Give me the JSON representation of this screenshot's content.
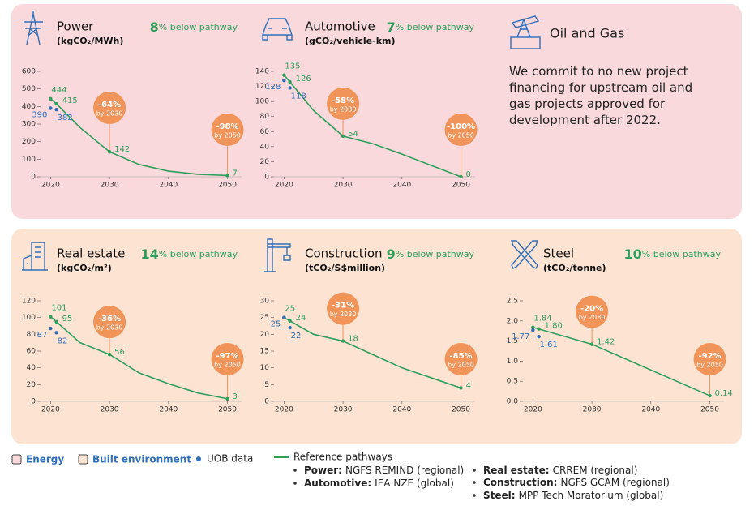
{
  "chart_data": [
    {
      "type": "line",
      "title": "Power",
      "subtitle": "(kgCO₂/MWh)",
      "gap": "8",
      "gap_text": "% below pathway",
      "xlim": [
        2018.3,
        2052.4
      ],
      "xticks": [
        2020,
        2030,
        2040,
        2050
      ],
      "ylim": [
        0,
        600
      ],
      "yticks": [
        0,
        100,
        200,
        300,
        400,
        500,
        600
      ],
      "reference": {
        "x": [
          2020,
          2021,
          2025,
          2030,
          2035,
          2040,
          2045,
          2050
        ],
        "values": [
          444,
          415,
          280,
          142,
          70,
          32,
          14,
          7
        ],
        "value_labels": [
          "444",
          "415",
          null,
          "142",
          null,
          null,
          null,
          "7"
        ]
      },
      "uob": {
        "x": [
          2020,
          2021
        ],
        "values": [
          390,
          382
        ]
      },
      "annotations": [
        {
          "x": 2030,
          "text": "-64%",
          "note": "by 2030"
        },
        {
          "x": 2050,
          "text": "-98%",
          "note": "by 2050"
        }
      ]
    },
    {
      "type": "line",
      "title": "Automotive",
      "subtitle": "(gCO₂/vehicle-km)",
      "gap": "7",
      "gap_text": "% below pathway",
      "xlim": [
        2018.3,
        2052.4
      ],
      "xticks": [
        2020,
        2030,
        2040,
        2050
      ],
      "ylim": [
        0,
        140
      ],
      "yticks": [
        0,
        20,
        40,
        60,
        80,
        100,
        120,
        140
      ],
      "reference": {
        "x": [
          2020,
          2021,
          2025,
          2030,
          2035,
          2040,
          2045,
          2050
        ],
        "values": [
          135,
          126,
          88,
          54,
          44,
          30,
          15,
          0
        ],
        "value_labels": [
          "135",
          "126",
          null,
          "54",
          null,
          null,
          null,
          "0"
        ]
      },
      "uob": {
        "x": [
          2020,
          2021
        ],
        "values": [
          128,
          118
        ]
      },
      "annotations": [
        {
          "x": 2030,
          "text": "-58%",
          "note": "by 2030"
        },
        {
          "x": 2050,
          "text": "-100%",
          "note": "by 2050"
        }
      ]
    },
    {
      "type": "line",
      "title": "Real estate",
      "subtitle": "(kgCO₂/m²)",
      "gap": "14",
      "gap_text": "% below pathway",
      "xlim": [
        2018.3,
        2052.4
      ],
      "xticks": [
        2020,
        2030,
        2040,
        2050
      ],
      "ylim": [
        0,
        120
      ],
      "yticks": [
        0,
        20,
        40,
        60,
        80,
        100,
        120
      ],
      "reference": {
        "x": [
          2020,
          2021,
          2025,
          2030,
          2035,
          2040,
          2045,
          2050
        ],
        "values": [
          101,
          95,
          70,
          56,
          34,
          21,
          10,
          3
        ],
        "value_labels": [
          "101",
          "95",
          null,
          "56",
          null,
          null,
          null,
          "3"
        ]
      },
      "uob": {
        "x": [
          2020,
          2021
        ],
        "values": [
          87,
          82
        ]
      },
      "annotations": [
        {
          "x": 2030,
          "text": "-36%",
          "note": "by 2030"
        },
        {
          "x": 2050,
          "text": "-97%",
          "note": "by 2050"
        }
      ]
    },
    {
      "type": "line",
      "title": "Construction",
      "subtitle": "(tCO₂/S$million)",
      "gap": "9",
      "gap_text": "% below pathway",
      "xlim": [
        2018.3,
        2052.4
      ],
      "xticks": [
        2020,
        2030,
        2040,
        2050
      ],
      "ylim": [
        0,
        30
      ],
      "yticks": [
        0,
        5,
        10,
        15,
        20,
        25,
        30
      ],
      "reference": {
        "x": [
          2020,
          2021,
          2025,
          2030,
          2035,
          2040,
          2045,
          2050
        ],
        "values": [
          25,
          24,
          20,
          18,
          14,
          10,
          7,
          4
        ],
        "value_labels": [
          "25",
          "24",
          null,
          "18",
          null,
          null,
          null,
          "4"
        ]
      },
      "uob": {
        "x": [
          2020,
          2021
        ],
        "values": [
          25,
          22
        ]
      },
      "annotations": [
        {
          "x": 2030,
          "text": "-31%",
          "note": "by 2030"
        },
        {
          "x": 2050,
          "text": "-85%",
          "note": "by 2050"
        }
      ]
    },
    {
      "type": "line",
      "title": "Steel",
      "subtitle": "(tCO₂/tonne)",
      "gap": "10",
      "gap_text": "% below pathway",
      "xlim": [
        2018.3,
        2052.4
      ],
      "xticks": [
        2020,
        2030,
        2040,
        2050
      ],
      "ylim": [
        0,
        2.5
      ],
      "yticks": [
        {
          "value": 0,
          "label": "0.0"
        },
        0.5,
        {
          "value": 1,
          "label": "1.0"
        },
        1.5,
        {
          "value": 2,
          "label": "2.0"
        },
        2.5
      ],
      "reference": {
        "x": [
          2020,
          2021,
          2030,
          2050
        ],
        "values": [
          1.84,
          1.8,
          1.42,
          0.14
        ],
        "value_labels": [
          "1.84",
          "1.80",
          "1.42",
          "0.14"
        ]
      },
      "uob": {
        "x": [
          2020,
          2021
        ],
        "values": [
          1.77,
          1.61
        ]
      },
      "annotations": [
        {
          "x": 2030,
          "text": "-20%",
          "note": "by 2030"
        },
        {
          "x": 2050,
          "text": "-92%",
          "note": "by 2050"
        }
      ]
    }
  ],
  "oil_and_gas": {
    "title": "Oil and Gas",
    "text": "We commit to no new project financing for upstream oil and gas projects approved for development after 2022."
  },
  "legend": {
    "sectors": [
      {
        "name": "Energy",
        "color": "#f9d9dc"
      },
      {
        "name": "Built environment",
        "color": "#fde4d2"
      }
    ],
    "uob": {
      "name": "UOB data",
      "color": "#2f6fba"
    },
    "reference": {
      "name": "Reference pathways",
      "color": "#2e9e5b",
      "sources": [
        {
          "sector": "Power:",
          "source": "NGFS REMIND (regional)"
        },
        {
          "sector": "Automotive:",
          "source": "IEA NZE (global)"
        },
        {
          "sector": "Real estate:",
          "source": "CRREM (regional)"
        },
        {
          "sector": "Construction:",
          "source": "NGFS GCAM (regional)"
        },
        {
          "sector": "Steel:",
          "source": "MPP Tech Moratorium (global)"
        }
      ]
    },
    "annotation_color": "#f0945a"
  }
}
